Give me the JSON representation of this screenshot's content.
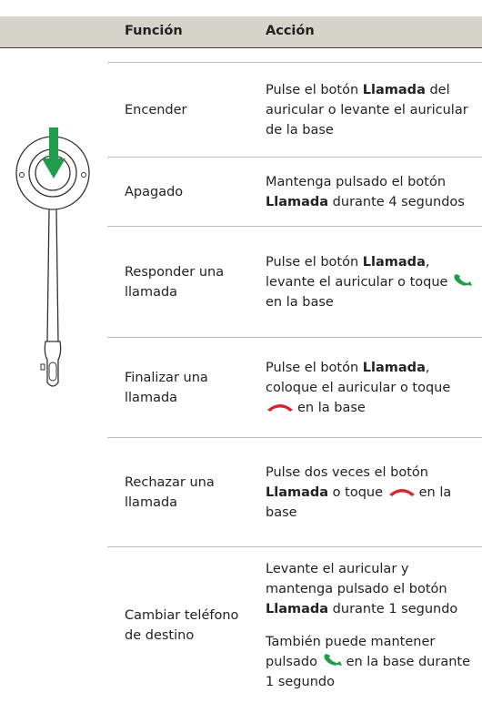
{
  "table": {
    "header": {
      "function": "Función",
      "action": "Acción"
    },
    "rows": [
      {
        "function": "Encender",
        "action": [
          [
            "Pulse el botón ",
            "Llamada",
            " del auricular o levante el auricular de la base"
          ]
        ]
      },
      {
        "function": "Apagado",
        "action": [
          [
            "Mantenga pulsado el botón ",
            "Llamada",
            " durante 4 segundos"
          ]
        ]
      },
      {
        "function": "Responder una llamada",
        "action": [
          [
            "Pulse el botón ",
            "Llamada",
            ", levante el auricular o toque ",
            "en la base"
          ]
        ]
      },
      {
        "function": "Finalizar una llamada",
        "action": [
          [
            "Pulse el botón ",
            "Llamada",
            ", coloque el auricular o toque ",
            "en la base"
          ]
        ]
      },
      {
        "function": "Rechazar una llamada",
        "action": [
          [
            "Pulse dos veces el botón ",
            "Llamada",
            " o toque ",
            "en la base"
          ]
        ]
      },
      {
        "function": "Cambiar teléfono de destino",
        "action": [
          [
            "Levante el auricular y mantenga pulsado el botón ",
            "Llamada",
            " durante 1 segundo"
          ],
          [
            "También puede mantener pulsado ",
            "en la base durante 1 segundo"
          ]
        ]
      }
    ]
  }
}
